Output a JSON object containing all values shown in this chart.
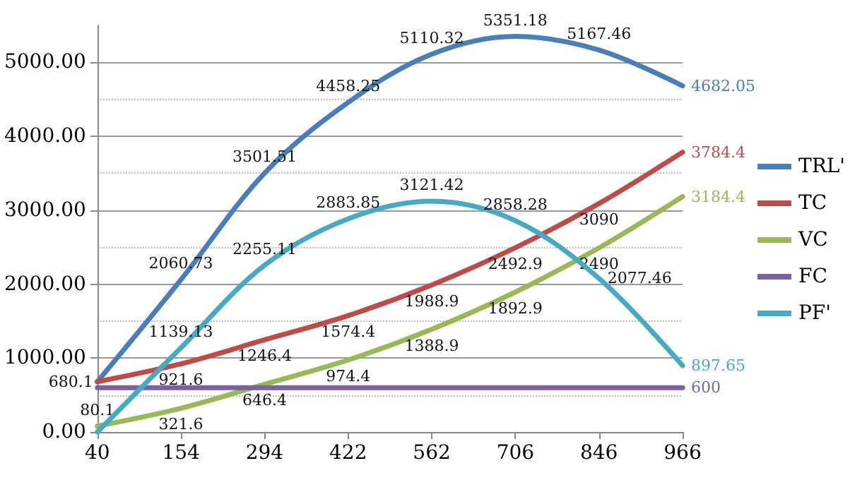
{
  "chart_data": {
    "type": "line",
    "categories": [
      "40",
      "154",
      "294",
      "422",
      "562",
      "706",
      "846",
      "966"
    ],
    "ylim": [
      0,
      5500
    ],
    "yticks": [
      {
        "value": 0,
        "label": "0.00"
      },
      {
        "value": 1000,
        "label": "1000.00"
      },
      {
        "value": 2000,
        "label": "2000.00"
      },
      {
        "value": 3000,
        "label": "3000.00"
      },
      {
        "value": 4000,
        "label": "4000.00"
      },
      {
        "value": 5000,
        "label": "5000.00"
      }
    ],
    "grid": "y",
    "legend": "right",
    "marker": "none",
    "series": [
      {
        "name": "TRL'",
        "color": "#4a7ebb",
        "values": [
          680.1,
          2060.73,
          3501.51,
          4458.25,
          5110.32,
          5351.18,
          5167.46,
          4682.05
        ],
        "value_labels": [
          null,
          "2060.73",
          "3501.51",
          "4458.25",
          "5110.32",
          "5351.18",
          "5167.46",
          "4682.05"
        ]
      },
      {
        "name": "TC",
        "color": "#be4b48",
        "values": [
          680.1,
          921.6,
          1246.4,
          1574.4,
          1988.9,
          2492.9,
          3090,
          3784.4
        ],
        "value_labels": [
          "680.1",
          "921.6",
          "1246.4",
          "1574.4",
          "1988.9",
          "2492.9",
          "3090",
          "3784.4"
        ]
      },
      {
        "name": "VC",
        "color": "#98b954",
        "values": [
          80.1,
          321.6,
          646.4,
          974.4,
          1388.9,
          1892.9,
          2490,
          3184.4
        ],
        "value_labels": [
          "80.1",
          "321.6",
          "646.4",
          "974.4",
          "1388.9",
          "1892.9",
          "2490",
          "3184.4"
        ]
      },
      {
        "name": "FC",
        "color": "#7d60a0",
        "values": [
          600,
          600,
          600,
          600,
          600,
          600,
          600,
          600
        ],
        "value_labels": [
          null,
          null,
          null,
          null,
          null,
          null,
          null,
          "600"
        ]
      },
      {
        "name": "PF'",
        "color": "#46aac5",
        "values": [
          0,
          1139.13,
          2255.11,
          2883.85,
          3121.42,
          2858.28,
          2077.46,
          897.65
        ],
        "value_labels": [
          null,
          "1139.13",
          "2255.11",
          "2883.85",
          "3121.42",
          "2858.28",
          "2077.46",
          "897.65"
        ]
      }
    ]
  }
}
